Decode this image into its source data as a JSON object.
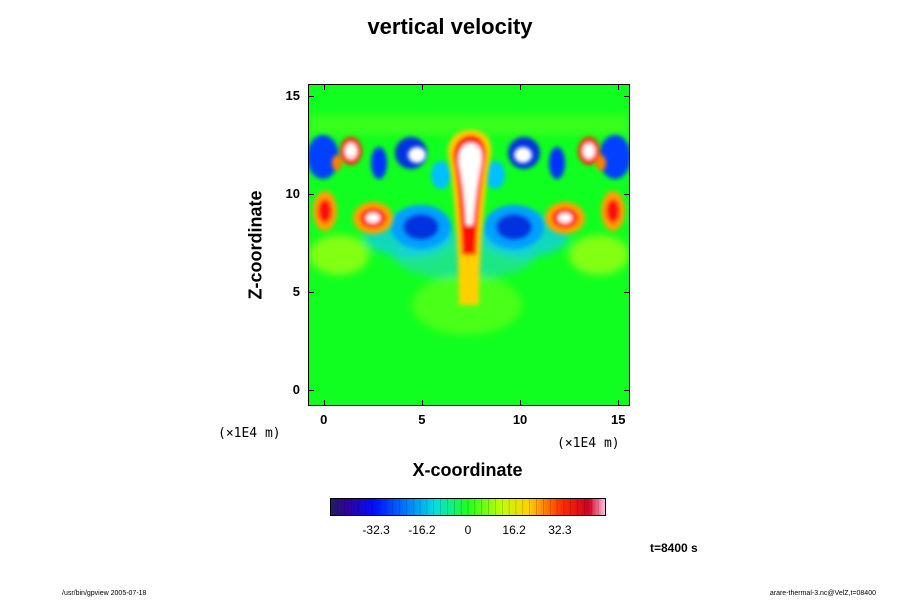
{
  "chart_data": {
    "type": "heatmap",
    "title": "vertical velocity",
    "xlabel": "X-coordinate",
    "ylabel": "Z-coordinate",
    "x_unit": "(×1E4 m)",
    "y_unit": "(×1E4 m)",
    "x_ticks": [
      0,
      5,
      10,
      15
    ],
    "y_ticks": [
      0,
      5,
      10,
      15
    ],
    "xlim": [
      -0.8,
      15.6
    ],
    "ylim": [
      -0.8,
      15.6
    ],
    "colorbar": {
      "ticks": [
        "-32.3",
        "-16.2",
        "0",
        "16.2",
        "32.3"
      ],
      "range": [
        -48.5,
        48.5
      ]
    },
    "features": [
      {
        "kind": "plume",
        "x": 7.8,
        "z": 11.5,
        "value": 48
      },
      {
        "kind": "updraft",
        "x": 2.8,
        "z": 8.8,
        "value": 45
      },
      {
        "kind": "updraft",
        "x": 12.8,
        "z": 8.8,
        "value": 45
      },
      {
        "kind": "updraft",
        "x": 0.4,
        "z": 9.2,
        "value": 40
      },
      {
        "kind": "updraft",
        "x": 15.2,
        "z": 9.2,
        "value": 40
      },
      {
        "kind": "downdraft",
        "x": 4.6,
        "z": 8.2,
        "value": -35
      },
      {
        "kind": "downdraft",
        "x": 10.8,
        "z": 8.2,
        "value": -35
      },
      {
        "kind": "downdraft",
        "x": 0.2,
        "z": 11.8,
        "value": -30
      },
      {
        "kind": "downdraft",
        "x": 15.4,
        "z": 11.8,
        "value": -30
      },
      {
        "kind": "updraft",
        "x": 1.8,
        "z": 12.2,
        "value": 42
      },
      {
        "kind": "updraft",
        "x": 13.6,
        "z": 12.2,
        "value": 42
      },
      {
        "kind": "updraft",
        "x": 4.9,
        "z": 12.0,
        "value": 40
      },
      {
        "kind": "updraft",
        "x": 10.6,
        "z": 12.0,
        "value": 40
      }
    ]
  },
  "labels": {
    "time": "t=8400 s",
    "footer_left": "/usr/bin/gpview 2005-07-18",
    "footer_right": "arare-thermal-3.nc@VelZ,t=08400"
  },
  "colors": {
    "background": "#00ff00"
  }
}
